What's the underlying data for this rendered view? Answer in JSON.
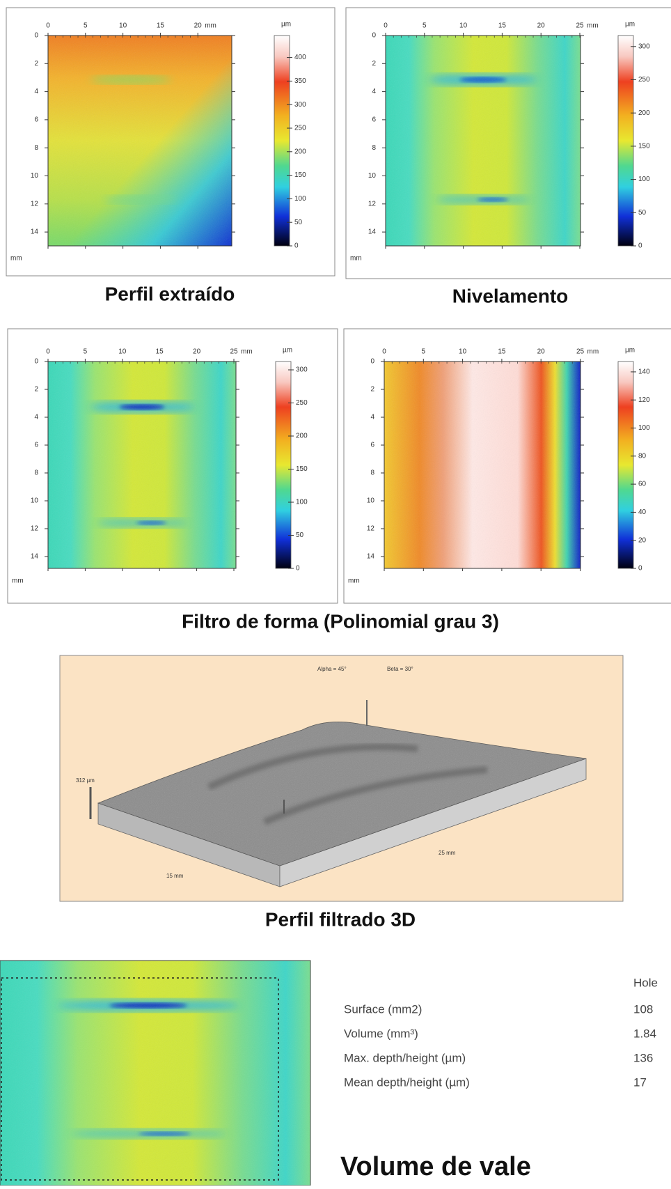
{
  "maps": [
    {
      "x_ticks": [
        0,
        5,
        10,
        15,
        20
      ],
      "x_unit": "mm",
      "y_ticks": [
        0,
        2,
        4,
        6,
        8,
        10,
        12,
        14
      ],
      "y_unit": "mm",
      "scale_unit": "µm",
      "scale_ticks": [
        0,
        50,
        100,
        150,
        200,
        250,
        300,
        350,
        400
      ]
    },
    {
      "x_ticks": [
        0,
        5,
        10,
        15,
        20,
        25
      ],
      "x_unit": "mm",
      "y_ticks": [
        0,
        2,
        4,
        6,
        8,
        10,
        12,
        14
      ],
      "y_unit": "mm",
      "scale_unit": "µm",
      "scale_ticks": [
        0,
        50,
        100,
        150,
        200,
        250,
        300
      ]
    },
    {
      "x_ticks": [
        0,
        5,
        10,
        15,
        20,
        25
      ],
      "x_unit": "mm",
      "y_ticks": [
        0,
        2,
        4,
        6,
        8,
        10,
        12,
        14
      ],
      "y_unit": "mm",
      "scale_unit": "µm",
      "scale_ticks": [
        0,
        50,
        100,
        150,
        200,
        250,
        300
      ]
    },
    {
      "x_ticks": [
        0,
        5,
        10,
        15,
        20,
        25
      ],
      "x_unit": "mm",
      "y_ticks": [
        0,
        2,
        4,
        6,
        8,
        10,
        12,
        14
      ],
      "y_unit": "mm",
      "scale_unit": "µm",
      "scale_ticks": [
        0,
        20,
        40,
        60,
        80,
        100,
        120,
        140
      ]
    }
  ],
  "captions": {
    "top_left": "Perfil extraído",
    "top_right": "Nivelamento",
    "middle": "Filtro de forma (Polinomial grau 3)"
  },
  "view3d": {
    "alpha": "Alpha = 45°",
    "beta": "Beta = 30°",
    "height": "312 µm",
    "width": "15 mm",
    "length": "25 mm",
    "caption": "Perfil filtrado 3D"
  },
  "results": {
    "column": "Hole",
    "rows": [
      {
        "label": "Surface (mm2)",
        "value": 108
      },
      {
        "label": "Volume (mm³)",
        "value": 1.84
      },
      {
        "label": "Max. depth/height (µm)",
        "value": 136
      },
      {
        "label": "Mean depth/height (µm)",
        "value": 17
      }
    ],
    "caption": "Volume de vale"
  }
}
